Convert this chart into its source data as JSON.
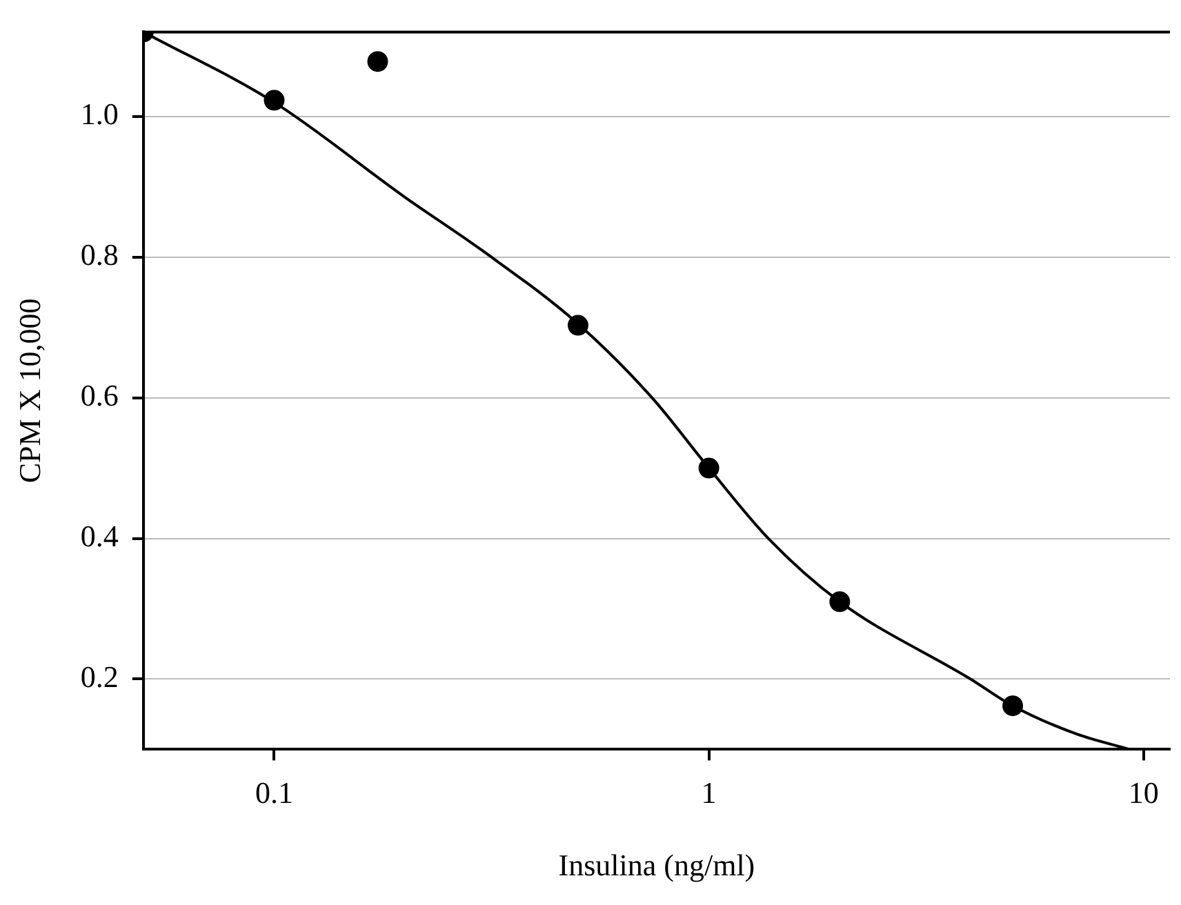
{
  "chart_data": {
    "type": "scatter",
    "xlabel": "Insulina (ng/ml)",
    "ylabel": "CPM X 10,000",
    "log": "x",
    "xlim": [
      0.05,
      11.5
    ],
    "xticks": [
      0.1,
      1,
      10
    ],
    "ylim": [
      0.1,
      1.12
    ],
    "yticks": [
      0.2,
      0.4,
      0.6,
      0.8,
      {
        "value": 1,
        "label": "1.0"
      }
    ],
    "grid": "y",
    "legend": false,
    "series": [
      {
        "color": "#000000",
        "marker": "circle",
        "x": [
          0.05,
          0.1,
          0.173,
          0.5,
          1,
          2,
          5
        ],
        "values": [
          1.12,
          1.023,
          1.078,
          0.703,
          0.5,
          0.31,
          0.162
        ]
      },
      {
        "type": "line",
        "color": "#000000",
        "marker": "none",
        "line_style": "solid",
        "x": [
          0.05,
          0.1,
          0.2,
          0.3,
          0.5,
          0.74,
          1,
          1.37,
          2,
          4,
          5,
          7,
          9.3
        ],
        "values": [
          1.12,
          1.02,
          0.885,
          0.81,
          0.705,
          0.6,
          0.5,
          0.4,
          0.31,
          0.2,
          0.162,
          0.122,
          0.1
        ]
      }
    ]
  }
}
